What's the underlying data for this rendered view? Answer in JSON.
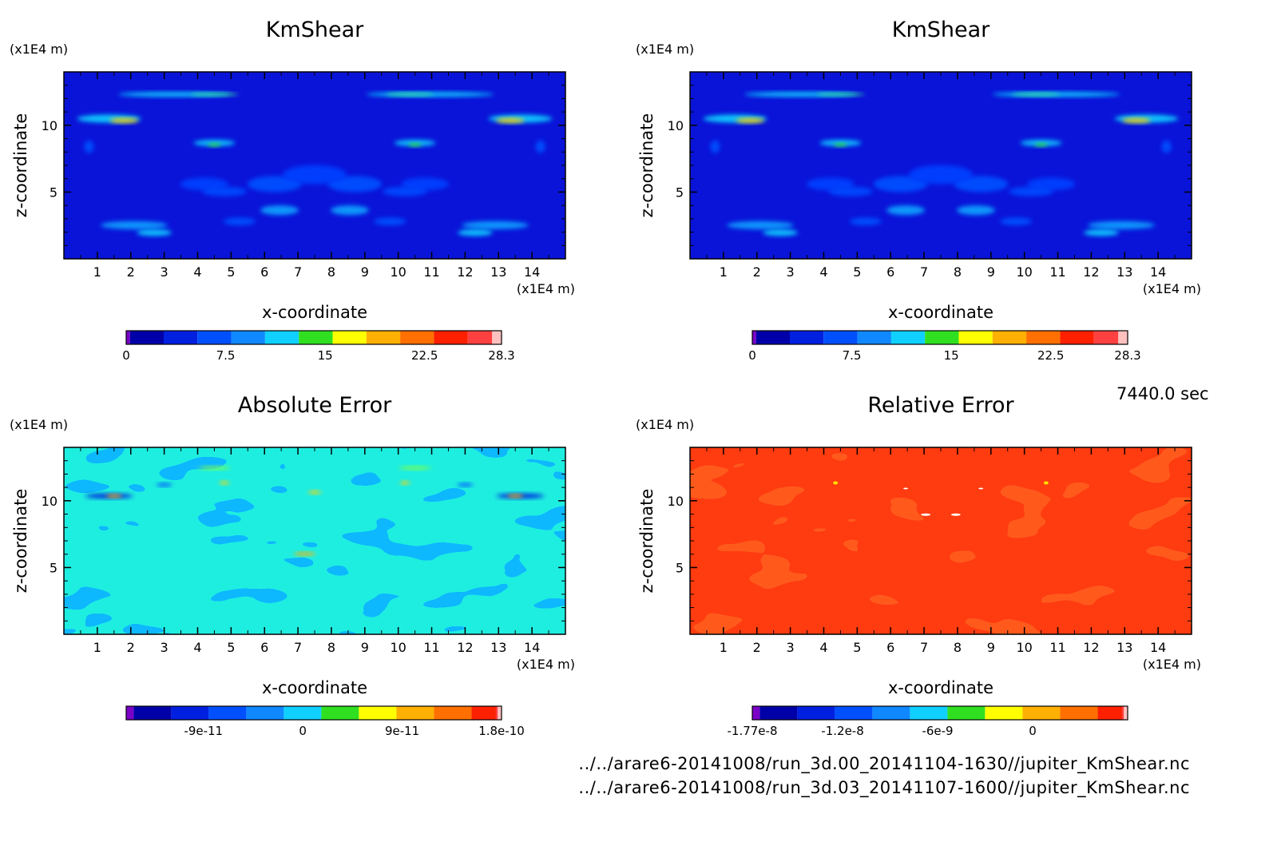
{
  "time_label": "7440.0 sec",
  "footer_lines": [
    "../../arare6-20141008/run_3d.00_20141104-1630//jupiter_KmShear.nc",
    "../../arare6-20141008/run_3d.03_20141107-1600//jupiter_KmShear.nc"
  ],
  "colors": {
    "field_blue": "#0a14d8",
    "abs_error_base": "#1eeee0",
    "rel_error_base": "#ff3b10"
  },
  "chart_data": [
    {
      "type": "heatmap",
      "title": "KmShear",
      "xlabel": "x-coordinate",
      "ylabel": "z-coordinate",
      "x_unit": "(x1E4 m)",
      "y_unit": "(x1E4 m)",
      "x_ticks": [
        "1",
        "2",
        "3",
        "4",
        "5",
        "6",
        "7",
        "8",
        "9",
        "10",
        "11",
        "12",
        "13",
        "14"
      ],
      "y_ticks": [
        "5",
        "10"
      ],
      "xlim": [
        0,
        15
      ],
      "ylim": [
        0,
        14
      ],
      "colorbar": {
        "colors": [
          "#7b00c8",
          "#0000a8",
          "#0020e0",
          "#0050ff",
          "#1088ff",
          "#10d0ff",
          "#30e020",
          "#ffff00",
          "#ffb000",
          "#ff7000",
          "#ff2000",
          "#ff4040",
          "#ffc0c0"
        ],
        "tick_labels": [
          "0",
          "7.5",
          "15",
          "22.5",
          "28.3"
        ],
        "tick_values": [
          0,
          7.5,
          15,
          22.5,
          28.3
        ],
        "range": [
          0,
          28.3
        ]
      }
    },
    {
      "type": "heatmap",
      "title": "KmShear",
      "xlabel": "x-coordinate",
      "ylabel": "z-coordinate",
      "x_unit": "(x1E4 m)",
      "y_unit": "(x1E4 m)",
      "x_ticks": [
        "1",
        "2",
        "3",
        "4",
        "5",
        "6",
        "7",
        "8",
        "9",
        "10",
        "11",
        "12",
        "13",
        "14"
      ],
      "y_ticks": [
        "5",
        "10"
      ],
      "xlim": [
        0,
        15
      ],
      "ylim": [
        0,
        14
      ],
      "colorbar": {
        "colors": [
          "#7b00c8",
          "#0000a8",
          "#0020e0",
          "#0050ff",
          "#1088ff",
          "#10d0ff",
          "#30e020",
          "#ffff00",
          "#ffb000",
          "#ff7000",
          "#ff2000",
          "#ff4040",
          "#ffc0c0"
        ],
        "tick_labels": [
          "0",
          "7.5",
          "15",
          "22.5",
          "28.3"
        ],
        "tick_values": [
          0,
          7.5,
          15,
          22.5,
          28.3
        ],
        "range": [
          0,
          28.3
        ]
      }
    },
    {
      "type": "heatmap",
      "title": "Absolute Error",
      "xlabel": "x-coordinate",
      "ylabel": "z-coordinate",
      "x_unit": "(x1E4 m)",
      "y_unit": "(x1E4 m)",
      "x_ticks": [
        "1",
        "2",
        "3",
        "4",
        "5",
        "6",
        "7",
        "8",
        "9",
        "10",
        "11",
        "12",
        "13",
        "14"
      ],
      "y_ticks": [
        "5",
        "10"
      ],
      "xlim": [
        0,
        15
      ],
      "ylim": [
        0,
        14
      ],
      "colorbar": {
        "colors": [
          "#7b00c8",
          "#0000a8",
          "#0020e0",
          "#0050ff",
          "#1088ff",
          "#10d0ff",
          "#30e020",
          "#ffff00",
          "#ffb000",
          "#ff7000",
          "#ff2000",
          "#ff4040",
          "#ffc0c0"
        ],
        "tick_labels": [
          "-9e-11",
          "0",
          "9e-11",
          "1.8e-10"
        ],
        "tick_values": [
          -9e-11,
          0,
          9e-11,
          1.8e-10
        ],
        "range": [
          -1.6e-10,
          1.8e-10
        ]
      }
    },
    {
      "type": "heatmap",
      "title": "Relative Error",
      "xlabel": "x-coordinate",
      "ylabel": "z-coordinate",
      "x_unit": "(x1E4 m)",
      "y_unit": "(x1E4 m)",
      "x_ticks": [
        "1",
        "2",
        "3",
        "4",
        "5",
        "6",
        "7",
        "8",
        "9",
        "10",
        "11",
        "12",
        "13",
        "14"
      ],
      "y_ticks": [
        "5",
        "10"
      ],
      "xlim": [
        0,
        15
      ],
      "ylim": [
        0,
        14
      ],
      "colorbar": {
        "colors": [
          "#7b00c8",
          "#0000a8",
          "#0020e0",
          "#0050ff",
          "#1088ff",
          "#10d0ff",
          "#30e020",
          "#ffff00",
          "#ffb000",
          "#ff7000",
          "#ff2000",
          "#ff4040",
          "#ffc0c0"
        ],
        "tick_labels": [
          "-1.77e-8",
          "-1.2e-8",
          "-6e-9",
          "0"
        ],
        "tick_values": [
          -1.77e-08,
          -1.2e-08,
          -6e-09,
          0
        ],
        "range": [
          -1.77e-08,
          6e-09
        ]
      }
    }
  ]
}
